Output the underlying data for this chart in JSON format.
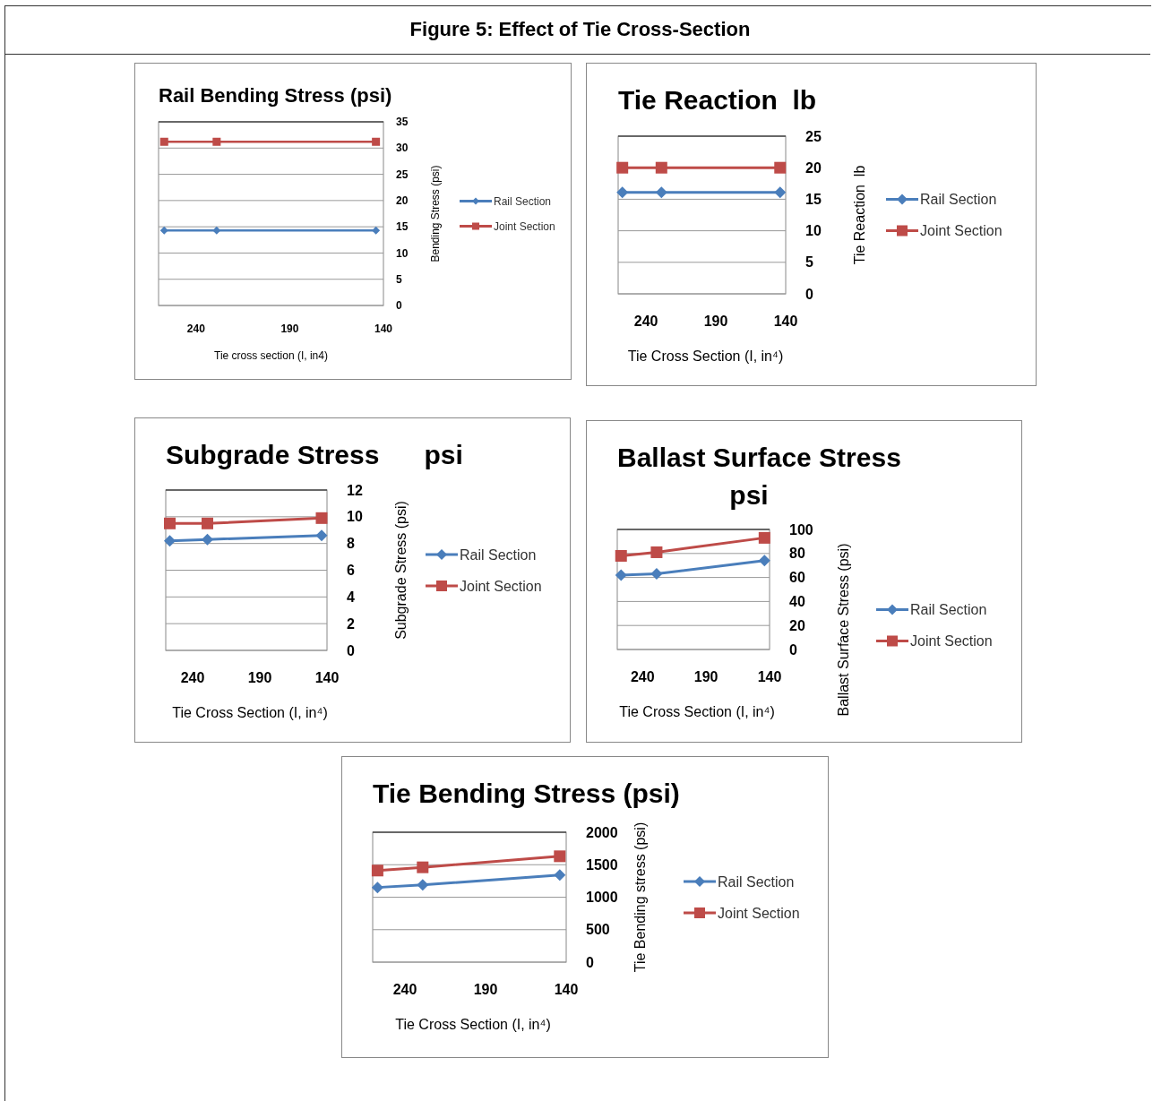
{
  "chart_data": [
    {
      "type": "line",
      "title": "Rail Bending Stress (psi)",
      "xlabel": "Tie cross section (I, in4)",
      "ylabel": "Bending Stress (psi)",
      "annotations": [
        "Figure 5: Effect of Tie Cross-Section"
      ],
      "x": [
        257,
        229,
        144
      ],
      "xlim": [
        260,
        140
      ],
      "xticks": [
        240,
        190,
        140
      ],
      "ylim": [
        0,
        35
      ],
      "yticks": [
        0,
        5,
        10,
        15,
        20,
        25,
        30,
        35
      ],
      "grid": "y",
      "legend": "right",
      "series": [
        {
          "name": "Rail Section",
          "color": "#4a7ebb",
          "marker": "diamond",
          "values": [
            14.3,
            14.3,
            14.3
          ]
        },
        {
          "name": "Joint Section",
          "color": "#be4b48",
          "marker": "square",
          "values": [
            31.2,
            31.2,
            31.2
          ]
        }
      ]
    },
    {
      "type": "line",
      "title": "Tie Reaction  lb",
      "xlabel": "Tie Cross Section (I, in⁴)",
      "ylabel": "Tie Reaction  lb",
      "x": [
        257,
        229,
        144
      ],
      "xlim": [
        260,
        140
      ],
      "xticks": [
        240,
        190,
        140
      ],
      "ylim": [
        0,
        25
      ],
      "yticks": [
        0,
        5,
        10,
        15,
        20,
        25
      ],
      "grid": "y",
      "legend": "right",
      "series": [
        {
          "name": "Rail Section",
          "color": "#4a7ebb",
          "marker": "diamond",
          "values": [
            16.1,
            16.1,
            16.1
          ]
        },
        {
          "name": "Joint Section",
          "color": "#be4b48",
          "marker": "square",
          "values": [
            20,
            20,
            20
          ]
        }
      ]
    },
    {
      "type": "line",
      "title": "Subgrade Stress      psi",
      "xlabel": "Tie Cross Section (I, in⁴)",
      "ylabel": "Subgrade Stress (psi)",
      "x": [
        257,
        229,
        144
      ],
      "xlim": [
        260,
        140
      ],
      "xticks": [
        240,
        190,
        140
      ],
      "ylim": [
        0,
        12
      ],
      "yticks": [
        0,
        2,
        4,
        6,
        8,
        10,
        12
      ],
      "grid": "y",
      "legend": "right",
      "series": [
        {
          "name": "Rail Section",
          "color": "#4a7ebb",
          "marker": "diamond",
          "values": [
            8.2,
            8.3,
            8.6
          ]
        },
        {
          "name": "Joint Section",
          "color": "#be4b48",
          "marker": "square",
          "values": [
            9.5,
            9.5,
            9.9
          ]
        }
      ]
    },
    {
      "type": "line",
      "title": "Ballast Surface Stress psi",
      "xlabel": "Tie Cross Section (I, in⁴)",
      "ylabel": "Ballast Surface Stress (psi)",
      "x": [
        257,
        229,
        144
      ],
      "xlim": [
        260,
        140
      ],
      "xticks": [
        240,
        190,
        140
      ],
      "ylim": [
        0,
        100
      ],
      "yticks": [
        0,
        20,
        40,
        60,
        80,
        100
      ],
      "grid": "y",
      "legend": "right",
      "series": [
        {
          "name": "Rail Section",
          "color": "#4a7ebb",
          "marker": "diamond",
          "values": [
            62,
            63,
            74
          ]
        },
        {
          "name": "Joint Section",
          "color": "#be4b48",
          "marker": "square",
          "values": [
            78,
            81,
            93
          ]
        }
      ]
    },
    {
      "type": "line",
      "title": "Tie Bending Stress (psi)",
      "xlabel": "Tie Cross Section (I, in⁴)",
      "ylabel": "Tie Bending stress (psi)",
      "x": [
        257,
        229,
        144
      ],
      "xlim": [
        260,
        140
      ],
      "xticks": [
        240,
        190,
        140
      ],
      "ylim": [
        0,
        2000
      ],
      "yticks": [
        0,
        500,
        1000,
        1500,
        2000
      ],
      "grid": "y",
      "legend": "right",
      "series": [
        {
          "name": "Rail Section",
          "color": "#4a7ebb",
          "marker": "diamond",
          "values": [
            1150,
            1190,
            1340
          ]
        },
        {
          "name": "Joint Section",
          "color": "#be4b48",
          "marker": "square",
          "values": [
            1410,
            1460,
            1630
          ]
        }
      ]
    }
  ]
}
